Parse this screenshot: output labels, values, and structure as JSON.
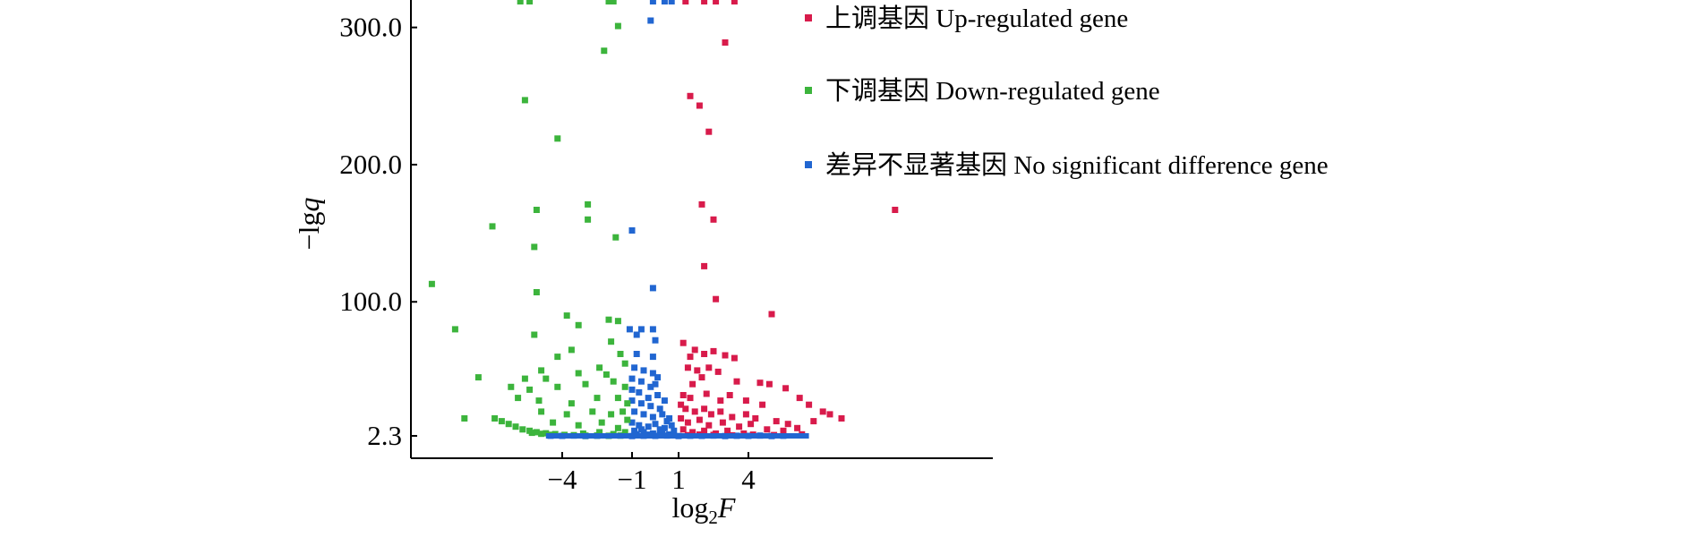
{
  "chart_data": {
    "type": "scatter",
    "title": "",
    "xlabel": "log",
    "xlabel_sub": "2",
    "xlabel_var": "F",
    "ylabel": "−lg",
    "ylabel_var": "q",
    "x_ticks": [
      {
        "value": -4,
        "label": "−4"
      },
      {
        "value": -1,
        "label": "−1"
      },
      {
        "value": 1,
        "label": "1"
      },
      {
        "value": 4,
        "label": "4"
      }
    ],
    "y_ticks": [
      {
        "value": 2.3,
        "label": "2.3"
      },
      {
        "value": 100,
        "label": "100.0"
      },
      {
        "value": 200,
        "label": "200.0"
      },
      {
        "value": 300,
        "label": "300.0"
      }
    ],
    "xlim": [
      -10.5,
      14.5
    ],
    "ylim": [
      -14,
      320
    ],
    "grid": false,
    "legend_position": "top-right",
    "colors": {
      "up": "#d81b4b",
      "down": "#3cb43c",
      "ns": "#2166d1",
      "axis": "#000000"
    },
    "series": [
      {
        "name": "上调基因 Up-regulated gene",
        "key": "up",
        "points": [
          [
            1.3,
            319
          ],
          [
            2.1,
            319
          ],
          [
            2.6,
            319
          ],
          [
            3.4,
            319
          ],
          [
            1.5,
            250
          ],
          [
            1.9,
            243
          ],
          [
            2.3,
            224
          ],
          [
            3.0,
            289
          ],
          [
            2.0,
            171
          ],
          [
            2.5,
            160
          ],
          [
            10.3,
            167
          ],
          [
            2.1,
            126
          ],
          [
            2.6,
            102
          ],
          [
            5.0,
            91
          ],
          [
            1.2,
            70
          ],
          [
            1.7,
            65
          ],
          [
            1.5,
            60
          ],
          [
            2.1,
            62
          ],
          [
            2.5,
            64
          ],
          [
            3.0,
            61
          ],
          [
            3.4,
            59
          ],
          [
            1.4,
            52
          ],
          [
            1.8,
            50
          ],
          [
            2.3,
            52
          ],
          [
            2.7,
            49
          ],
          [
            2.0,
            45
          ],
          [
            1.6,
            40
          ],
          [
            3.5,
            42
          ],
          [
            4.5,
            41
          ],
          [
            4.9,
            40
          ],
          [
            5.6,
            37
          ],
          [
            6.2,
            30
          ],
          [
            1.2,
            32
          ],
          [
            1.5,
            30
          ],
          [
            2.2,
            33
          ],
          [
            2.8,
            28
          ],
          [
            3.2,
            32
          ],
          [
            3.9,
            28
          ],
          [
            4.6,
            25
          ],
          [
            6.6,
            25
          ],
          [
            7.5,
            18
          ],
          [
            7.2,
            20
          ],
          [
            8.0,
            15
          ],
          [
            6.8,
            13
          ],
          [
            1.1,
            25
          ],
          [
            1.3,
            22
          ],
          [
            1.7,
            20
          ],
          [
            2.1,
            22
          ],
          [
            2.4,
            18
          ],
          [
            2.8,
            20
          ],
          [
            3.3,
            16
          ],
          [
            3.9,
            18
          ],
          [
            4.3,
            15
          ],
          [
            5.2,
            13
          ],
          [
            5.7,
            11
          ],
          [
            6.1,
            8
          ],
          [
            1.1,
            15
          ],
          [
            1.4,
            12
          ],
          [
            1.9,
            14
          ],
          [
            2.3,
            10
          ],
          [
            2.9,
            12
          ],
          [
            3.6,
            9
          ],
          [
            4.1,
            11
          ],
          [
            4.8,
            7
          ],
          [
            5.5,
            6
          ],
          [
            1.2,
            7
          ],
          [
            1.6,
            5
          ],
          [
            2.1,
            6
          ],
          [
            2.6,
            4
          ],
          [
            3.1,
            6
          ],
          [
            3.8,
            4
          ],
          [
            1.4,
            2.8
          ],
          [
            1.9,
            3.3
          ],
          [
            2.5,
            3.0
          ],
          [
            3.3,
            2.7
          ],
          [
            4.2,
            3.2
          ],
          [
            5.1,
            2.9
          ],
          [
            6.3,
            3.4
          ]
        ]
      },
      {
        "name": "下调基因 Down-regulated gene",
        "key": "down",
        "points": [
          [
            -5.8,
            319
          ],
          [
            -5.4,
            319
          ],
          [
            -2.0,
            319
          ],
          [
            -1.8,
            319
          ],
          [
            -1.6,
            301
          ],
          [
            -2.2,
            283
          ],
          [
            -5.6,
            247
          ],
          [
            -4.2,
            219
          ],
          [
            -2.9,
            171
          ],
          [
            -5.1,
            167
          ],
          [
            -2.9,
            160
          ],
          [
            -7.0,
            155
          ],
          [
            -1.7,
            147
          ],
          [
            -5.2,
            140
          ],
          [
            -9.6,
            113
          ],
          [
            -5.1,
            107
          ],
          [
            -8.6,
            80
          ],
          [
            -3.8,
            90
          ],
          [
            -2.0,
            87
          ],
          [
            -1.6,
            86
          ],
          [
            -3.3,
            83
          ],
          [
            -5.2,
            76
          ],
          [
            -1.9,
            71
          ],
          [
            -3.6,
            65
          ],
          [
            -4.2,
            60
          ],
          [
            -1.5,
            62
          ],
          [
            -4.9,
            50
          ],
          [
            -3.3,
            48
          ],
          [
            -2.4,
            52
          ],
          [
            -7.6,
            45
          ],
          [
            -5.6,
            44
          ],
          [
            -4.7,
            44
          ],
          [
            -2.1,
            47
          ],
          [
            -1.3,
            55
          ],
          [
            -6.2,
            38
          ],
          [
            -5.4,
            36
          ],
          [
            -4.2,
            38
          ],
          [
            -3.0,
            40
          ],
          [
            -1.8,
            42
          ],
          [
            -1.3,
            38
          ],
          [
            -5.9,
            30
          ],
          [
            -5.0,
            28
          ],
          [
            -3.6,
            26
          ],
          [
            -2.5,
            30
          ],
          [
            -1.6,
            30
          ],
          [
            -1.2,
            26
          ],
          [
            -4.9,
            20
          ],
          [
            -3.8,
            18
          ],
          [
            -2.7,
            20
          ],
          [
            -1.9,
            18
          ],
          [
            -1.4,
            20
          ],
          [
            -1.2,
            14
          ],
          [
            -4.4,
            12
          ],
          [
            -3.3,
            10
          ],
          [
            -2.3,
            12
          ],
          [
            -1.6,
            8
          ],
          [
            -1.3,
            5
          ],
          [
            -8.2,
            15
          ],
          [
            -6.9,
            15
          ],
          [
            -6.6,
            13
          ],
          [
            -6.3,
            11
          ],
          [
            -6.0,
            9
          ],
          [
            -5.7,
            7
          ],
          [
            -5.4,
            6
          ],
          [
            -5.1,
            5
          ],
          [
            -4.7,
            4.2
          ],
          [
            -4.3,
            3.6
          ],
          [
            -3.9,
            3.0
          ],
          [
            -3.5,
            2.8
          ],
          [
            -3.0,
            2.5
          ],
          [
            -2.5,
            2.6
          ],
          [
            -2.0,
            2.4
          ],
          [
            -1.5,
            2.5
          ],
          [
            -5.3,
            4.5
          ],
          [
            -4.9,
            3.8
          ],
          [
            -4.5,
            3.1
          ],
          [
            -3.1,
            4.0
          ],
          [
            -2.4,
            5.0
          ],
          [
            -1.8,
            3.6
          ]
        ]
      },
      {
        "name": "差异不显著基因 No significant difference gene",
        "key": "ns",
        "points": [
          [
            -0.1,
            319
          ],
          [
            0.4,
            319
          ],
          [
            0.7,
            319
          ],
          [
            -0.2,
            305
          ],
          [
            -1.0,
            152
          ],
          [
            -0.1,
            110
          ],
          [
            -1.1,
            80
          ],
          [
            -0.6,
            80
          ],
          [
            -0.1,
            80
          ],
          [
            -0.8,
            76
          ],
          [
            0.0,
            72
          ],
          [
            -0.8,
            62
          ],
          [
            -0.1,
            60
          ],
          [
            -0.9,
            52
          ],
          [
            -0.5,
            50
          ],
          [
            -0.1,
            48
          ],
          [
            0.1,
            45
          ],
          [
            -1.0,
            44
          ],
          [
            -0.6,
            42
          ],
          [
            -0.2,
            38
          ],
          [
            0.0,
            40
          ],
          [
            -1.0,
            36
          ],
          [
            -0.7,
            34
          ],
          [
            -0.3,
            30
          ],
          [
            0.1,
            32
          ],
          [
            -1.0,
            28
          ],
          [
            -0.6,
            26
          ],
          [
            -0.2,
            24
          ],
          [
            0.2,
            22
          ],
          [
            0.4,
            28
          ],
          [
            -0.9,
            20
          ],
          [
            -0.5,
            18
          ],
          [
            -0.1,
            16
          ],
          [
            0.3,
            18
          ],
          [
            0.6,
            15
          ],
          [
            -1.0,
            12
          ],
          [
            -0.7,
            10
          ],
          [
            -0.3,
            9
          ],
          [
            0.0,
            11
          ],
          [
            0.4,
            8
          ],
          [
            0.7,
            10
          ],
          [
            -0.9,
            6
          ],
          [
            -0.5,
            5
          ],
          [
            -0.1,
            4
          ],
          [
            0.3,
            5
          ],
          [
            0.8,
            6
          ],
          [
            -4.5,
            2.4
          ],
          [
            -4.0,
            2.3
          ],
          [
            -3.5,
            2.5
          ],
          [
            -3.0,
            2.2
          ],
          [
            -2.5,
            2.4
          ],
          [
            -2.0,
            2.3
          ],
          [
            -1.5,
            2.5
          ],
          [
            -1.0,
            2.2
          ],
          [
            -0.5,
            2.4
          ],
          [
            0.0,
            2.3
          ],
          [
            0.5,
            2.5
          ],
          [
            1.0,
            2.2
          ],
          [
            1.5,
            2.4
          ],
          [
            2.0,
            2.3
          ],
          [
            2.5,
            2.5
          ],
          [
            3.0,
            2.2
          ],
          [
            3.5,
            2.4
          ],
          [
            4.0,
            2.3
          ],
          [
            4.5,
            2.5
          ],
          [
            5.0,
            2.2
          ],
          [
            5.5,
            2.4
          ],
          [
            -0.8,
            3.5
          ],
          [
            -0.3,
            3.2
          ],
          [
            0.2,
            3.6
          ],
          [
            0.6,
            3.3
          ],
          [
            -0.6,
            7
          ],
          [
            0.2,
            7
          ],
          [
            0.5,
            13
          ]
        ]
      }
    ]
  }
}
